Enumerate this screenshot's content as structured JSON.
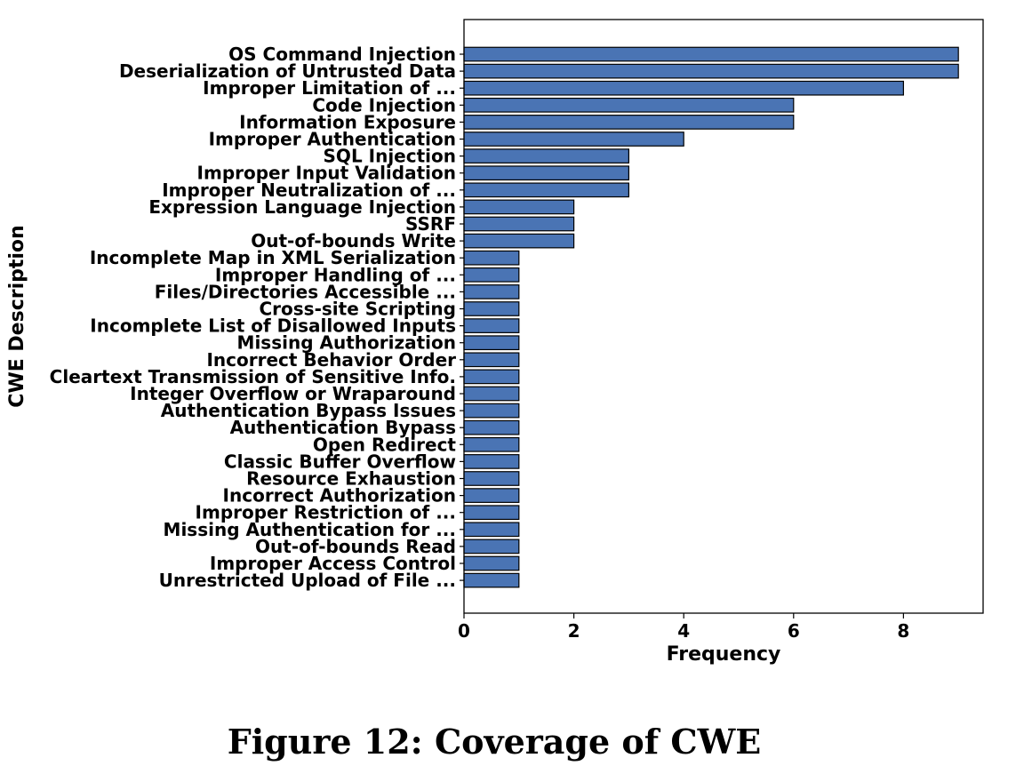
{
  "caption": "Figure 12: Coverage of CWE",
  "chart_data": {
    "type": "bar",
    "orientation": "horizontal",
    "xlabel": "Frequency",
    "ylabel": "CWE Description",
    "xlim": [
      0,
      9.45
    ],
    "xticks": [
      0,
      2,
      4,
      6,
      8
    ],
    "bar_color": "#4a74b4",
    "edge_color": "#000000",
    "grid": false,
    "categories": [
      "OS Command Injection",
      "Deserialization of Untrusted Data",
      "Improper Limitation of ...",
      "Code Injection",
      "Information Exposure",
      "Improper Authentication",
      "SQL Injection",
      "Improper Input Validation",
      "Improper Neutralization of ...",
      "Expression Language Injection",
      "SSRF",
      "Out-of-bounds Write",
      "Incomplete Map in XML Serialization",
      "Improper Handling of ...",
      "Files/Directories Accessible ...",
      "Cross-site Scripting",
      "Incomplete List of Disallowed Inputs",
      "Missing Authorization",
      "Incorrect Behavior Order",
      "Cleartext Transmission of Sensitive Info.",
      "Integer Overflow or Wraparound",
      "Authentication Bypass Issues",
      "Authentication Bypass",
      "Open Redirect",
      "Classic Buffer Overflow",
      "Resource Exhaustion",
      "Incorrect Authorization",
      "Improper Restriction of ...",
      "Missing Authentication for ...",
      "Out-of-bounds Read",
      "Improper Access Control",
      "Unrestricted Upload of File ..."
    ],
    "values": [
      9,
      9,
      8,
      6,
      6,
      4,
      3,
      3,
      3,
      2,
      2,
      2,
      1,
      1,
      1,
      1,
      1,
      1,
      1,
      1,
      1,
      1,
      1,
      1,
      1,
      1,
      1,
      1,
      1,
      1,
      1,
      1
    ]
  }
}
